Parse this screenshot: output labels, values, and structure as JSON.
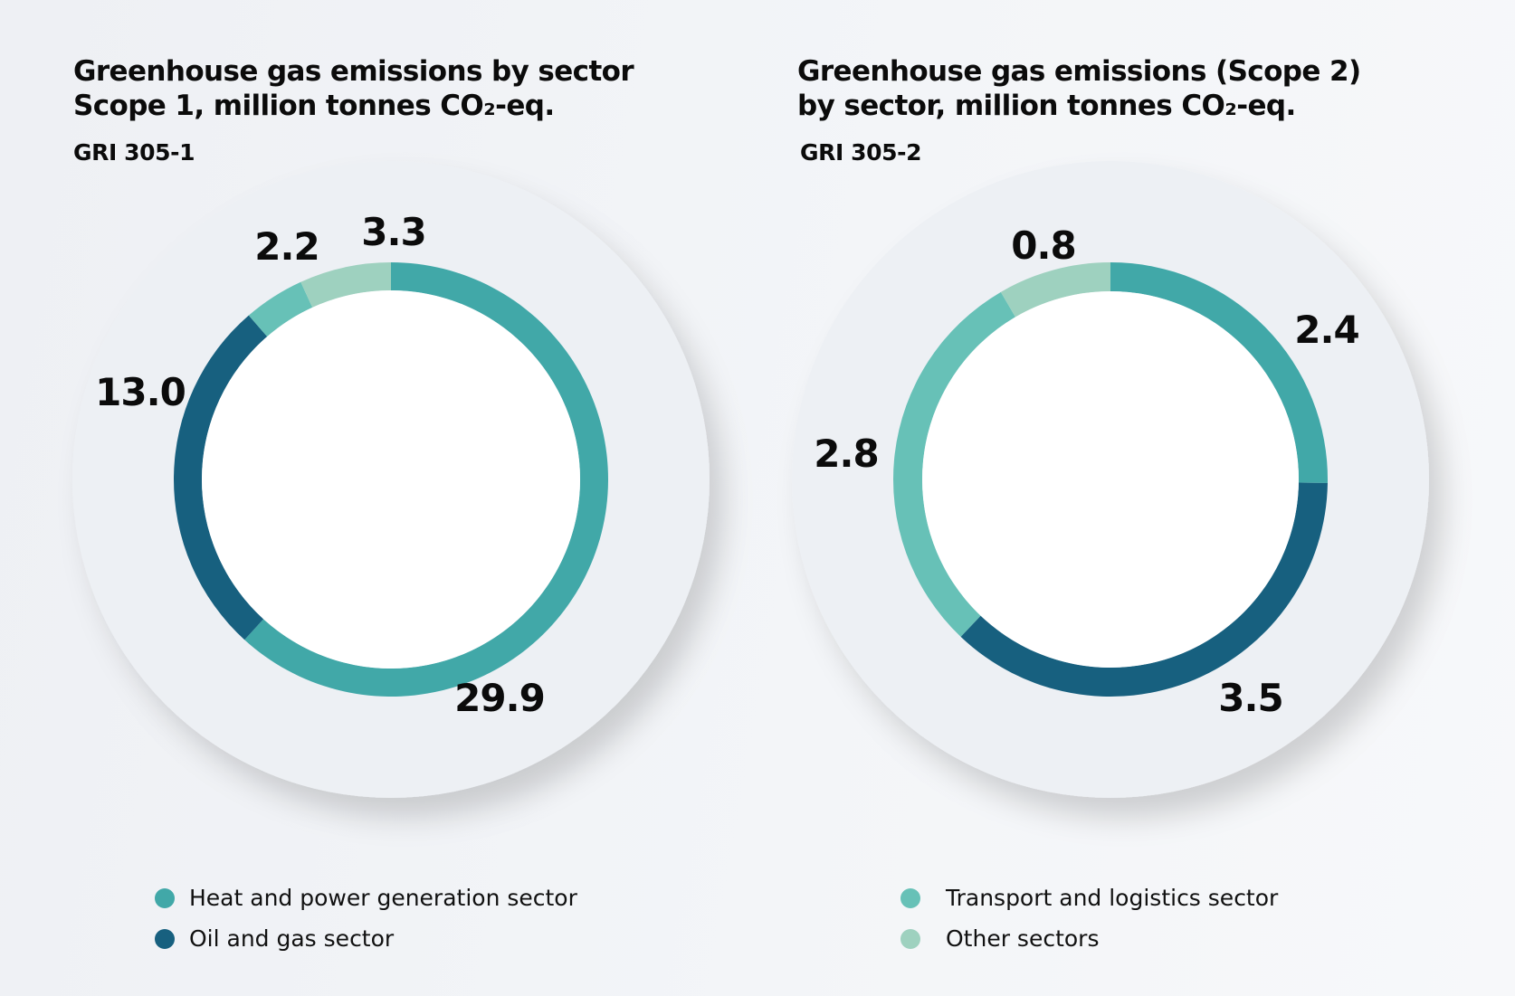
{
  "colors": {
    "heat_power": "#41a8a8",
    "oil_gas": "#17607f",
    "transport": "#67c1b7",
    "other": "#9ed1bf",
    "disc": "#edf0f4",
    "hole": "#ffffff"
  },
  "chart_data": [
    {
      "type": "pie",
      "variant": "donut",
      "title": "Greenhouse gas emissions by sector\nScope 1, million tonnes CO₂-eq.",
      "subtitle": "GRI 305-1",
      "unit": "million tonnes CO₂-eq.",
      "start": "top",
      "direction": "clockwise",
      "slices": [
        {
          "key": "heat_power",
          "label": "Heat and power generation sector",
          "value": 29.9,
          "display": "29.9"
        },
        {
          "key": "oil_gas",
          "label": "Oil and gas sector",
          "value": 13.0,
          "display": "13.0"
        },
        {
          "key": "transport",
          "label": "Transport and logistics sector",
          "value": 2.2,
          "display": "2.2"
        },
        {
          "key": "other",
          "label": "Other sectors",
          "value": 3.3,
          "display": "3.3"
        }
      ],
      "legend": [
        {
          "key": "heat_power",
          "label": "Heat and power generation sector"
        },
        {
          "key": "oil_gas",
          "label": "Oil and gas sector"
        }
      ]
    },
    {
      "type": "pie",
      "variant": "donut",
      "title": "Greenhouse gas emissions (Scope 2)\nby sector, million tonnes CO₂-eq.",
      "subtitle": "GRI 305-2",
      "unit": "million tonnes CO₂-eq.",
      "start": "top",
      "direction": "clockwise",
      "slices": [
        {
          "key": "heat_power",
          "label": "Heat and power generation sector",
          "value": 2.4,
          "display": "2.4"
        },
        {
          "key": "oil_gas",
          "label": "Oil and gas sector",
          "value": 3.5,
          "display": "3.5"
        },
        {
          "key": "transport",
          "label": "Transport and logistics sector",
          "value": 2.8,
          "display": "2.8"
        },
        {
          "key": "other",
          "label": "Other sectors",
          "value": 0.8,
          "display": "0.8"
        }
      ],
      "legend": [
        {
          "key": "transport",
          "label": "Transport and logistics sector"
        },
        {
          "key": "other",
          "label": "Other sectors"
        }
      ]
    }
  ]
}
